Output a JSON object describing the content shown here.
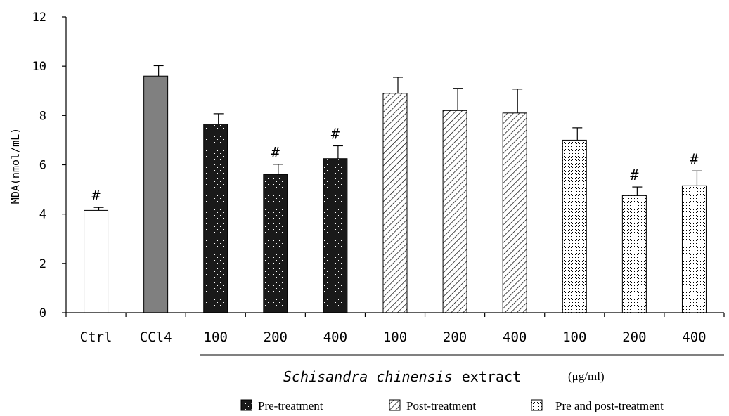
{
  "chart_data": {
    "type": "bar",
    "ylabel": "MDA(nmol/mL)",
    "ylim": [
      0,
      12
    ],
    "yticks": [
      "0",
      "2",
      "4",
      "6",
      "8",
      "10",
      "12"
    ],
    "categories": [
      "Ctrl",
      "CCl4",
      "100",
      "200",
      "400",
      "100",
      "200",
      "400",
      "100",
      "200",
      "400"
    ],
    "values": [
      4.15,
      9.6,
      7.65,
      5.6,
      6.25,
      8.9,
      8.2,
      8.1,
      7.0,
      4.75,
      5.15
    ],
    "errors": [
      0.12,
      0.42,
      0.42,
      0.42,
      0.52,
      0.65,
      0.9,
      0.97,
      0.5,
      0.35,
      0.6
    ],
    "marks": [
      "#",
      "",
      "",
      "#",
      "#",
      "",
      "",
      "",
      "",
      "#",
      "#"
    ],
    "groups": [
      "control",
      "model",
      "pre",
      "pre",
      "pre",
      "post",
      "post",
      "post",
      "prepost",
      "prepost",
      "prepost"
    ],
    "group_label": {
      "italic": "Schisandra chinensis",
      "plain": "extract",
      "unit": "(μg/ml)"
    },
    "legend": [
      {
        "key": "pre",
        "label": "Pre-treatment"
      },
      {
        "key": "post",
        "label": "Post-treatment"
      },
      {
        "key": "prepost",
        "label": "Pre and post-treatment"
      }
    ],
    "colors": {
      "control": "#ffffff",
      "model": "#808080",
      "pre": "#1a1a1a",
      "post": "#ffffff",
      "prepost": "#ffffff",
      "axis": "#000000"
    }
  }
}
